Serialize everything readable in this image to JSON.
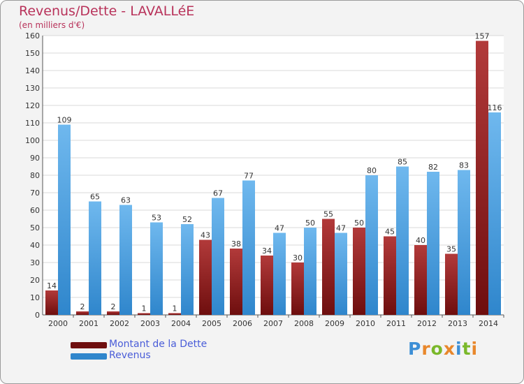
{
  "title": "Revenus/Dette - LAVALLéE",
  "subtitle": "(en milliers d'€)",
  "colors": {
    "dette": "#6e0e0e",
    "dette_light": "#b23a3a",
    "revenus": "#2f86cc",
    "revenus_light": "#6fb8ee",
    "title": "#b8325a",
    "legend_text": "#4a5dd8",
    "grid": "#d8d8d8"
  },
  "legend": {
    "dette": "Montant de la Dette",
    "revenus": "Revenus"
  },
  "logo": {
    "letters": [
      "P",
      "r",
      "o",
      "x",
      "i",
      "t",
      "i"
    ],
    "colors": [
      "#3d8fd6",
      "#e8872b",
      "#7ab82a",
      "#e8872b",
      "#3d8fd6",
      "#7ab82a",
      "#e8872b"
    ]
  },
  "chart_data": {
    "type": "bar",
    "categories": [
      "2000",
      "2001",
      "2002",
      "2003",
      "2004",
      "2005",
      "2006",
      "2007",
      "2008",
      "2009",
      "2010",
      "2011",
      "2012",
      "2013",
      "2014"
    ],
    "series": [
      {
        "name": "Montant de la Dette",
        "values": [
          14,
          2,
          2,
          1,
          1,
          43,
          38,
          34,
          30,
          55,
          50,
          45,
          40,
          35,
          157
        ]
      },
      {
        "name": "Revenus",
        "values": [
          109,
          65,
          63,
          53,
          52,
          67,
          77,
          47,
          50,
          47,
          80,
          85,
          82,
          83,
          116
        ]
      }
    ],
    "ylim": [
      0,
      160
    ],
    "yticks": [
      0,
      10,
      20,
      30,
      40,
      50,
      60,
      70,
      80,
      90,
      100,
      110,
      120,
      130,
      140,
      150,
      160
    ],
    "grid": true,
    "legend_position": "bottom-left"
  }
}
